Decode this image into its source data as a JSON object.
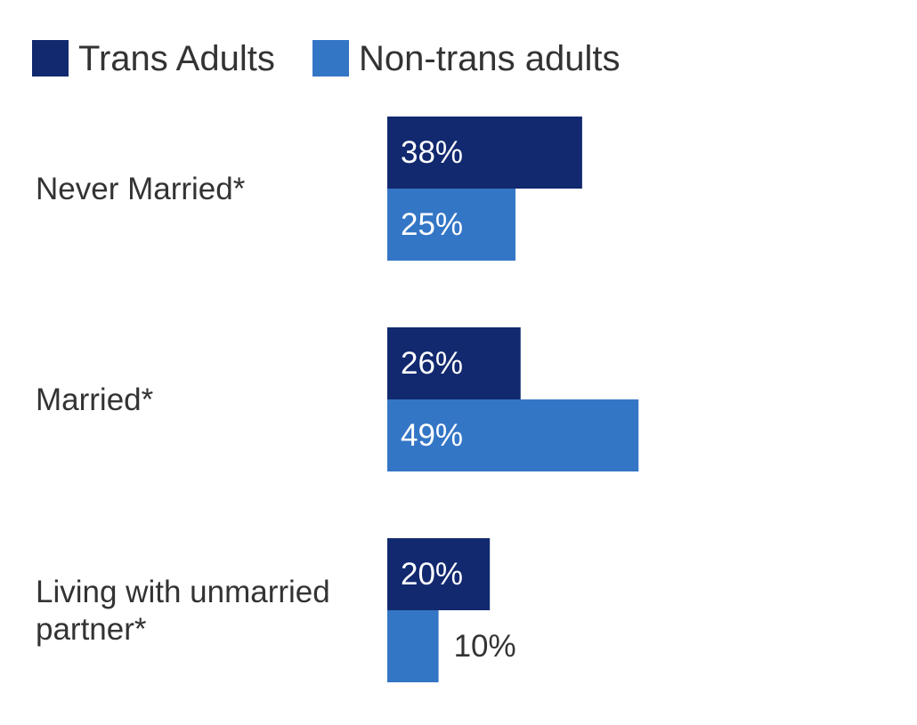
{
  "chart_data": {
    "type": "bar",
    "orientation": "horizontal",
    "categories": [
      [
        "Never Married*"
      ],
      [
        "Married*"
      ],
      [
        "Living with unmarried",
        "partner*"
      ]
    ],
    "series": [
      {
        "name": "Trans Adults",
        "values": [
          38,
          26,
          20
        ],
        "color": "#12296f"
      },
      {
        "name": "Non-trans adults",
        "values": [
          25,
          49,
          10
        ],
        "color": "#3476c6"
      }
    ],
    "value_suffix": "%",
    "legend_position": "top-left",
    "grid": false,
    "axes_visible": false,
    "xlim": [
      0,
      100
    ]
  }
}
